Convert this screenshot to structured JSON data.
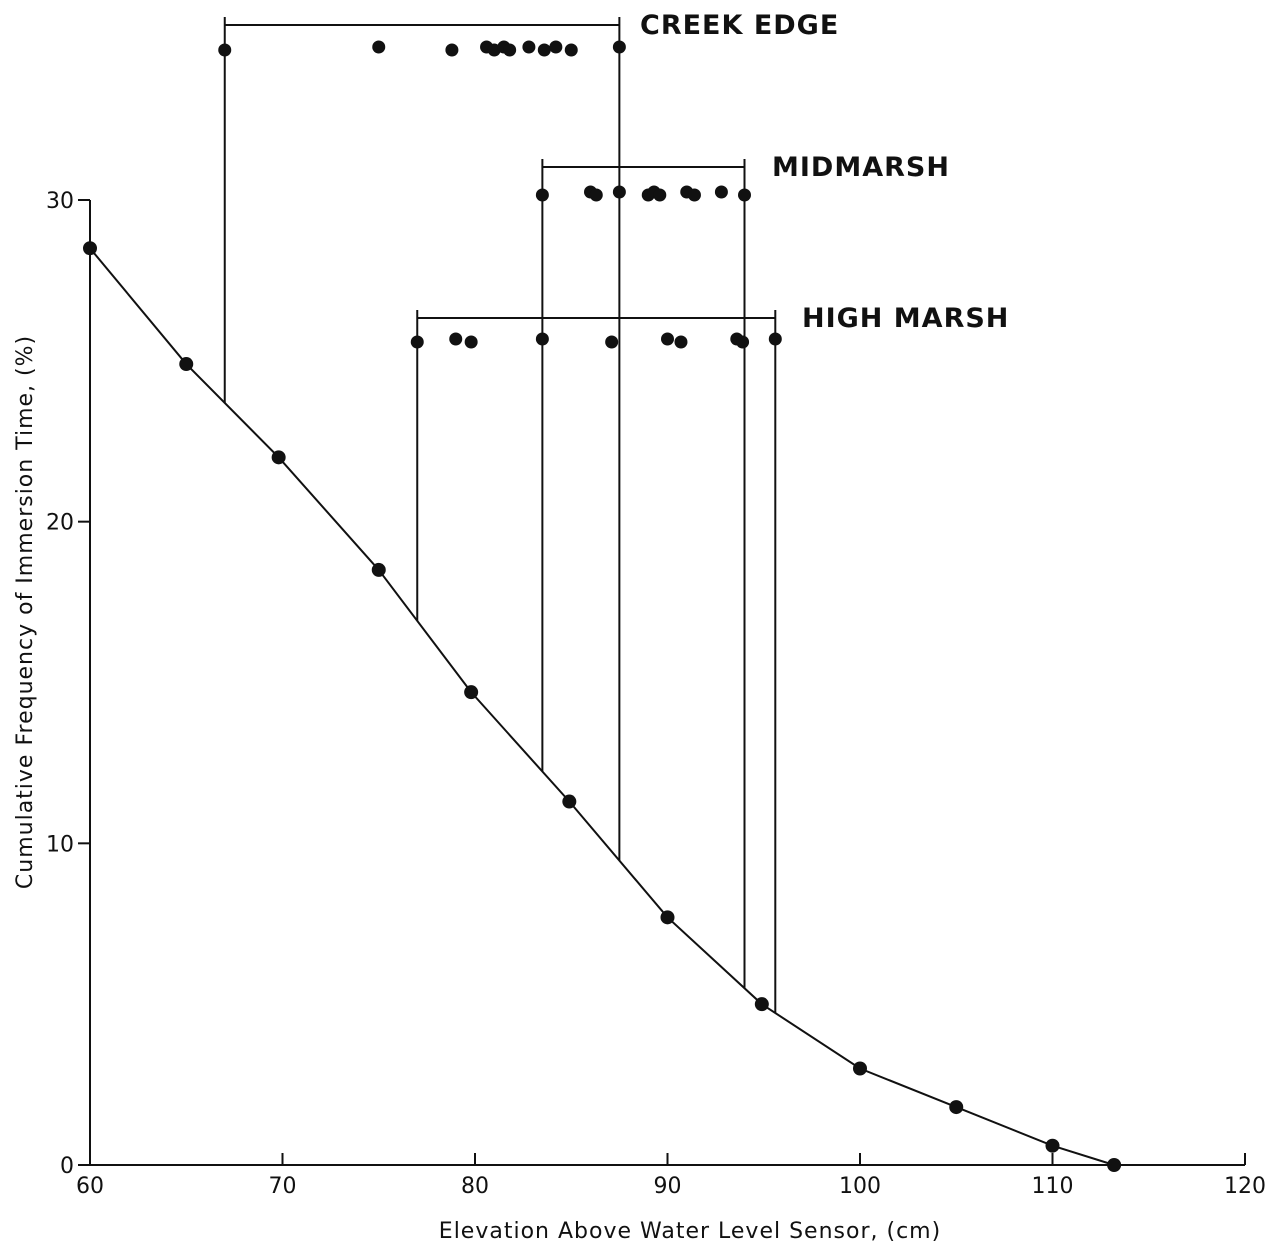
{
  "chart_data": {
    "type": "line",
    "xlabel": "Elevation Above Water Level Sensor, (cm)",
    "ylabel": "Cumulative Frequency of Immersion Time, (%)",
    "xlim": [
      60,
      120
    ],
    "ylim": [
      0,
      30
    ],
    "xticks": [
      60,
      70,
      80,
      90,
      100,
      110,
      120
    ],
    "yticks": [
      0,
      10,
      20,
      30
    ],
    "grid": false,
    "series": [
      {
        "x": [
          60,
          65,
          69.8,
          75,
          79.8,
          84.9,
          90,
          94.9,
          100,
          105,
          110,
          113.2
        ],
        "y": [
          28.5,
          24.9,
          22.0,
          18.5,
          14.7,
          11.3,
          7.7,
          5.0,
          3.0,
          1.8,
          0.6,
          0.0
        ]
      }
    ],
    "groups": [
      {
        "name": "CREEK EDGE",
        "range": [
          67,
          87.5
        ],
        "points": [
          67,
          75,
          78.8,
          80.6,
          81.0,
          81.5,
          81.8,
          82.8,
          83.6,
          84.2,
          85.0,
          87.5
        ]
      },
      {
        "name": "MIDMARSH",
        "range": [
          83.5,
          94
        ],
        "points": [
          83.5,
          86.0,
          86.3,
          87.5,
          89.0,
          89.3,
          89.6,
          91.0,
          91.4,
          92.8,
          94.0
        ]
      },
      {
        "name": "HIGH MARSH",
        "range": [
          77,
          95.6
        ],
        "points": [
          77,
          79.0,
          79.8,
          83.5,
          87.1,
          90.0,
          90.7,
          93.6,
          93.9,
          95.6
        ]
      }
    ]
  }
}
